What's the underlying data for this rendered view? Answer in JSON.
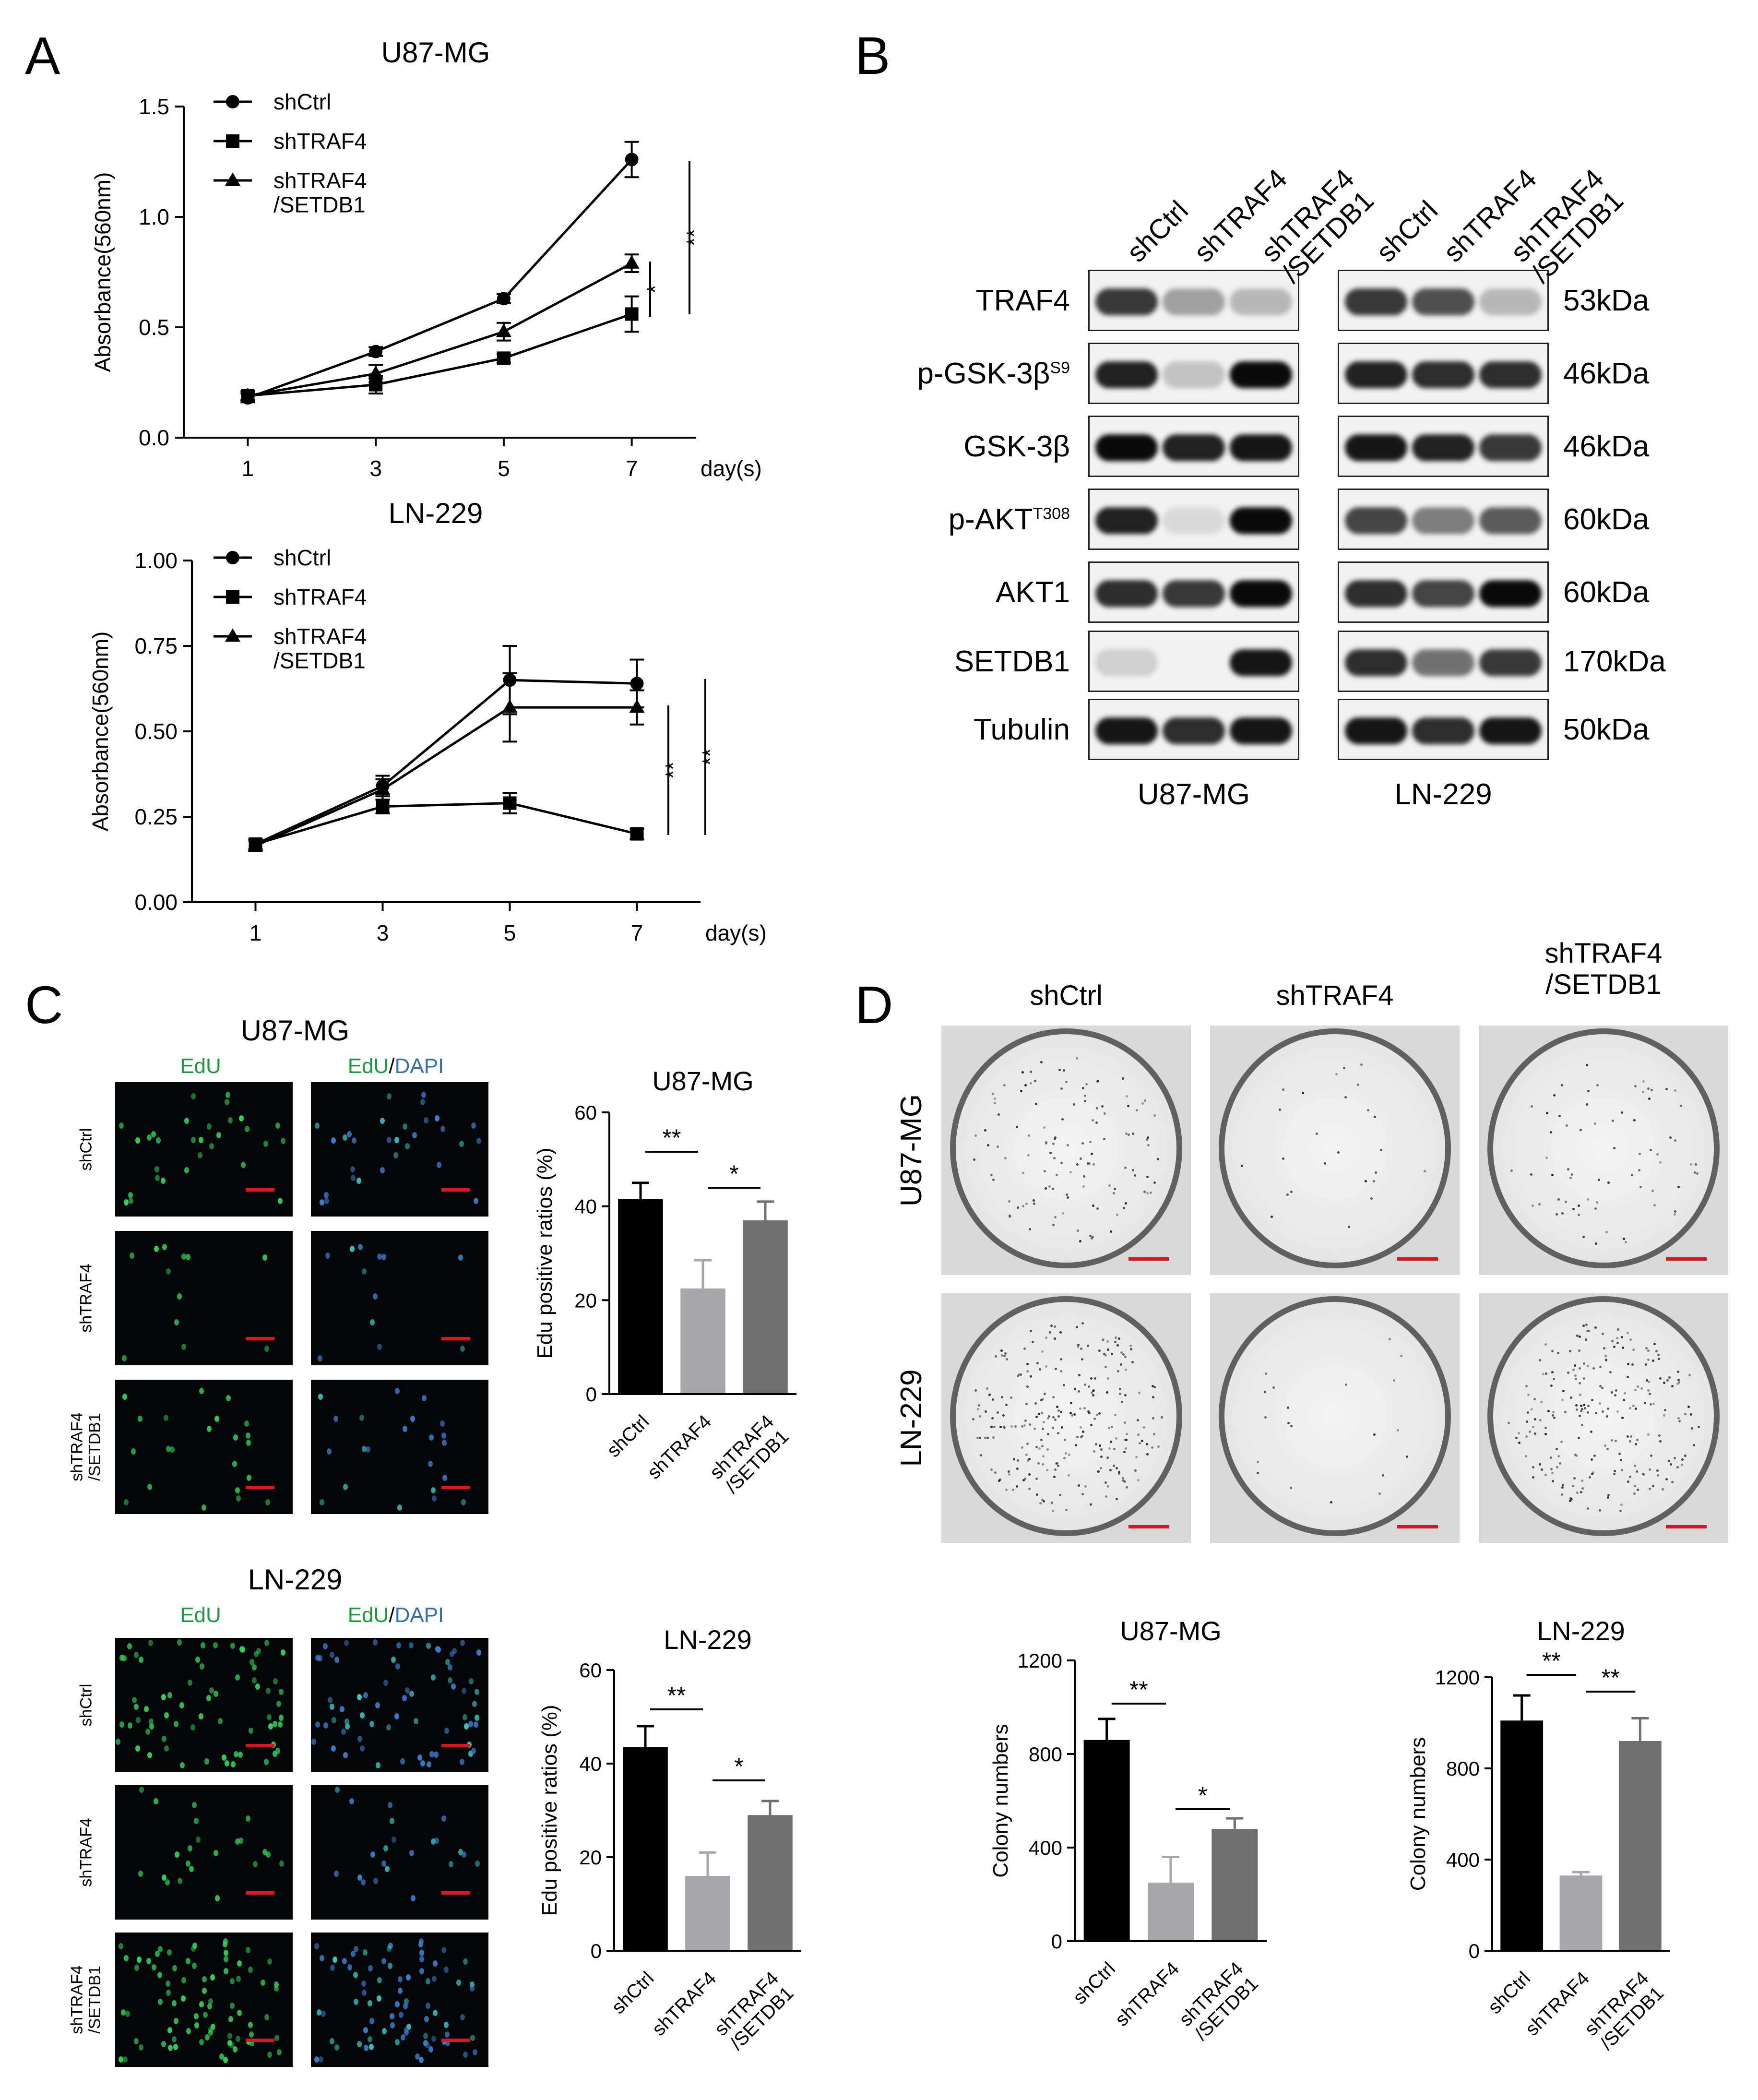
{
  "panels": {
    "A": {
      "label": "A",
      "top_title": "U87-MG",
      "bottom_title": "LN-229",
      "day_label": "day(s)"
    },
    "B": {
      "label": "B",
      "lane_labels": [
        "shCtrl",
        "shTRAF4",
        "shTRAF4\n/SETDB1"
      ],
      "proteins": [
        {
          "name": "TRAF4",
          "sup": "",
          "size": "53kDa"
        },
        {
          "name": "p-GSK-3β",
          "sup": "S9",
          "size": "46kDa"
        },
        {
          "name": "GSK-3β",
          "sup": "",
          "size": "46kDa"
        },
        {
          "name": "p-AKT",
          "sup": "T308",
          "size": "60kDa"
        },
        {
          "name": "AKT1",
          "sup": "",
          "size": "60kDa"
        },
        {
          "name": "SETDB1",
          "sup": "",
          "size": "170kDa"
        },
        {
          "name": "Tubulin",
          "sup": "",
          "size": "50kDa"
        }
      ],
      "cell_lines": [
        "U87-MG",
        "LN-229"
      ],
      "band_intensity": {
        "U87-MG": [
          [
            0.8,
            0.35,
            0.25
          ],
          [
            0.9,
            0.2,
            1.0
          ],
          [
            1.0,
            0.9,
            0.95
          ],
          [
            0.9,
            0.1,
            1.0
          ],
          [
            0.85,
            0.8,
            1.0
          ],
          [
            0.15,
            0.0,
            0.95
          ],
          [
            0.95,
            0.85,
            0.95
          ]
        ],
        "LN-229": [
          [
            0.8,
            0.7,
            0.25
          ],
          [
            0.9,
            0.85,
            0.85
          ],
          [
            0.95,
            0.9,
            0.8
          ],
          [
            0.75,
            0.5,
            0.65
          ],
          [
            0.85,
            0.75,
            1.0
          ],
          [
            0.85,
            0.55,
            0.8
          ],
          [
            0.95,
            0.85,
            0.95
          ]
        ]
      }
    },
    "C": {
      "label": "C",
      "groups": [
        {
          "title": "U87-MG",
          "col1": "EdU",
          "col2a": "EdU",
          "col2sep": "/",
          "col2b": "DAPI",
          "row_labels": [
            "shCtrl",
            "shTRAF4",
            "shTRAF4\n/SETDB1"
          ]
        },
        {
          "title": "LN-229",
          "col1": "EdU",
          "col2a": "EdU",
          "col2sep": "/",
          "col2b": "DAPI",
          "row_labels": [
            "shCtrl",
            "shTRAF4",
            "shTRAF4\n/SETDB1"
          ]
        }
      ]
    },
    "D": {
      "label": "D",
      "col_labels": [
        "shCtrl",
        "shTRAF4",
        "shTRAF4\n/SETDB1"
      ],
      "row_labels": [
        "U87-MG",
        "LN-229"
      ]
    }
  },
  "colors": {
    "black": "#000000",
    "light_grey": "#a6a6ab",
    "dark_grey": "#707070",
    "edu_green": "#1a9a3a",
    "dapi_blue": "#2f6fb5",
    "scale_red": "#e0141e"
  },
  "chart_data": [
    {
      "id": "A-top",
      "type": "line",
      "title": "U87-MG",
      "xlabel": "day(s)",
      "ylabel": "Absorbance(560nm)",
      "x": [
        1,
        3,
        5,
        7
      ],
      "xlim": [
        0,
        8
      ],
      "ylim": [
        0,
        1.5
      ],
      "yticks": [
        0.0,
        0.5,
        1.0,
        1.5
      ],
      "ytick_labels": [
        "0.0",
        "0.5",
        "1.0",
        "1.5"
      ],
      "series": [
        {
          "name": "shCtrl",
          "marker": "circle",
          "values": [
            0.18,
            0.39,
            0.63,
            1.26
          ],
          "err": [
            0.02,
            0.02,
            0.02,
            0.08
          ]
        },
        {
          "name": "shTRAF4",
          "marker": "square",
          "values": [
            0.19,
            0.24,
            0.36,
            0.56
          ],
          "err": [
            0.02,
            0.04,
            0.02,
            0.08
          ]
        },
        {
          "name": "shTRAF4\n/SETDB1",
          "marker": "triangle",
          "values": [
            0.19,
            0.29,
            0.48,
            0.79
          ],
          "err": [
            0.02,
            0.04,
            0.04,
            0.04
          ]
        }
      ],
      "significance": [
        {
          "label": "*"
        },
        {
          "label": "**"
        }
      ]
    },
    {
      "id": "A-bottom",
      "type": "line",
      "title": "LN-229",
      "xlabel": "day(s)",
      "ylabel": "Absorbance(560nm)",
      "x": [
        1,
        3,
        5,
        7
      ],
      "xlim": [
        0,
        8
      ],
      "ylim": [
        0,
        1.0
      ],
      "yticks": [
        0.0,
        0.25,
        0.5,
        0.75,
        1.0
      ],
      "ytick_labels": [
        "0.00",
        "0.25",
        "0.50",
        "0.75",
        "1.00"
      ],
      "series": [
        {
          "name": "shCtrl",
          "marker": "circle",
          "values": [
            0.17,
            0.34,
            0.65,
            0.64
          ],
          "err": [
            0.015,
            0.03,
            0.1,
            0.07
          ]
        },
        {
          "name": "shTRAF4",
          "marker": "square",
          "values": [
            0.17,
            0.28,
            0.29,
            0.2
          ],
          "err": [
            0.015,
            0.02,
            0.03,
            0.015
          ]
        },
        {
          "name": "shTRAF4\n/SETDB1",
          "marker": "triangle",
          "values": [
            0.165,
            0.33,
            0.57,
            0.57
          ],
          "err": [
            0.015,
            0.03,
            0.1,
            0.05
          ]
        }
      ],
      "significance": [
        {
          "label": "**"
        },
        {
          "label": "**"
        }
      ]
    },
    {
      "id": "C-top",
      "type": "bar",
      "title": "U87-MG",
      "ylabel": "Edu positive ratios (%)",
      "categories": [
        "shCtrl",
        "shTRAF4",
        "shTRAF4\n/SETDB1"
      ],
      "values": [
        41.5,
        22.5,
        37
      ],
      "err": [
        3.5,
        6,
        4
      ],
      "ylim": [
        0,
        60
      ],
      "yticks": [
        0,
        20,
        40,
        60
      ],
      "ytick_labels": [
        "0",
        "20",
        "40",
        "60"
      ],
      "significance": [
        {
          "a": 0,
          "b": 1,
          "label": "**"
        },
        {
          "a": 1,
          "b": 2,
          "label": "*"
        }
      ]
    },
    {
      "id": "C-bottom",
      "type": "bar",
      "title": "LN-229",
      "ylabel": "Edu positive ratios (%)",
      "categories": [
        "shCtrl",
        "shTRAF4",
        "shTRAF4\n/SETDB1"
      ],
      "values": [
        43.5,
        16,
        29
      ],
      "err": [
        4.5,
        5,
        3
      ],
      "ylim": [
        0,
        60
      ],
      "yticks": [
        0,
        20,
        40,
        60
      ],
      "ytick_labels": [
        "0",
        "20",
        "40",
        "60"
      ],
      "significance": [
        {
          "a": 0,
          "b": 1,
          "label": "**"
        },
        {
          "a": 1,
          "b": 2,
          "label": "*"
        }
      ]
    },
    {
      "id": "D-left",
      "type": "bar",
      "title": "U87-MG",
      "ylabel": "Colony numbers",
      "categories": [
        "shCtrl",
        "shTRAF4",
        "shTRAF4\n/SETDB1"
      ],
      "values": [
        860,
        250,
        480
      ],
      "err": [
        90,
        110,
        45
      ],
      "ylim": [
        0,
        1200
      ],
      "yticks": [
        0,
        400,
        800,
        1200
      ],
      "ytick_labels": [
        "0",
        "400",
        "800",
        "1200"
      ],
      "significance": [
        {
          "a": 0,
          "b": 1,
          "label": "**"
        },
        {
          "a": 1,
          "b": 2,
          "label": "*"
        }
      ]
    },
    {
      "id": "D-right",
      "type": "bar",
      "title": "LN-229",
      "ylabel": "Colony numbers",
      "categories": [
        "shCtrl",
        "shTRAF4",
        "shTRAF4\n/SETDB1"
      ],
      "values": [
        1010,
        330,
        920
      ],
      "err": [
        110,
        15,
        100
      ],
      "ylim": [
        0,
        1200
      ],
      "yticks": [
        0,
        400,
        800,
        1200
      ],
      "ytick_labels": [
        "0",
        "400",
        "800",
        "1200"
      ],
      "significance": [
        {
          "a": 0,
          "b": 1,
          "label": "**"
        },
        {
          "a": 1,
          "b": 2,
          "label": "**"
        }
      ]
    }
  ]
}
